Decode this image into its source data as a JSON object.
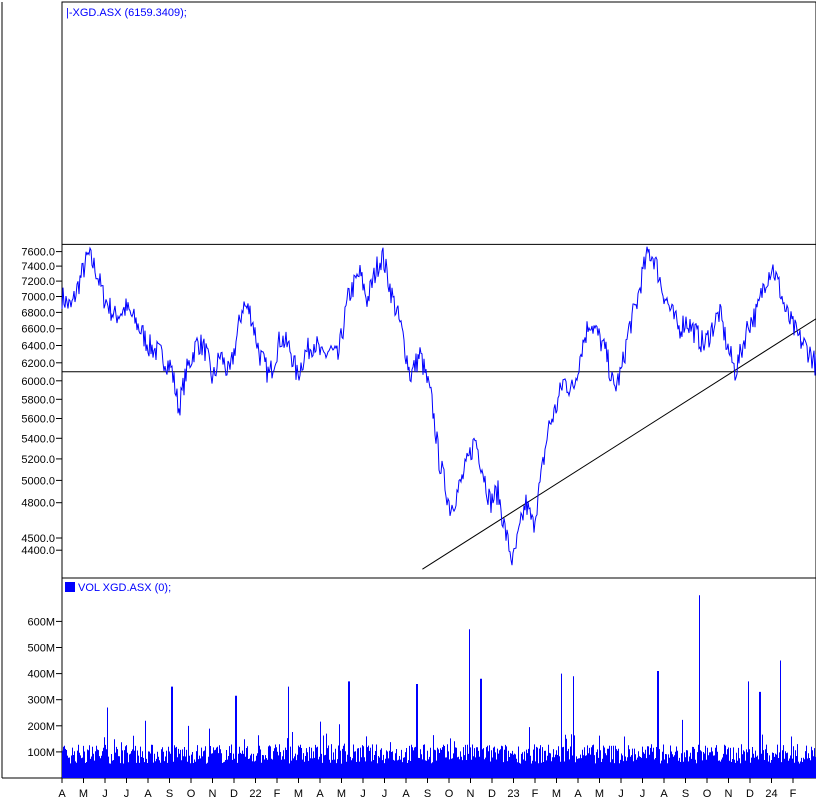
{
  "chart_data": [
    {
      "type": "line",
      "title": "",
      "legend": "|-XGD.ASX (6159.3409);",
      "y_ticks": [
        4400,
        4500,
        4800,
        5000,
        5200,
        5400,
        5600,
        5800,
        6000,
        6200,
        6400,
        6600,
        6800,
        7000,
        7200,
        7400,
        7600
      ],
      "y_tick_labels": [
        "4400.0",
        "4500.0",
        "4800.0",
        "5000.0",
        "5200.0",
        "5400.0",
        "5600.0",
        "5800.0",
        "6000.0",
        "6200.0",
        "6400.0",
        "6600.0",
        "6800.0",
        "7000.0",
        "7200.0",
        "7400.0",
        "7600.0"
      ],
      "hlines": [
        7700,
        6100
      ],
      "trendline": {
        "from": [
          0.478,
          4250
        ],
        "to": [
          1.0,
          6720
        ]
      },
      "keypoints": [
        [
          0.0,
          7000
        ],
        [
          0.012,
          6850
        ],
        [
          0.025,
          7250
        ],
        [
          0.035,
          7550
        ],
        [
          0.045,
          7350
        ],
        [
          0.055,
          7000
        ],
        [
          0.07,
          6750
        ],
        [
          0.085,
          6850
        ],
        [
          0.1,
          6650
        ],
        [
          0.115,
          6400
        ],
        [
          0.13,
          6300
        ],
        [
          0.145,
          6150
        ],
        [
          0.155,
          5700
        ],
        [
          0.165,
          6100
        ],
        [
          0.18,
          6450
        ],
        [
          0.19,
          6350
        ],
        [
          0.2,
          6000
        ],
        [
          0.21,
          6300
        ],
        [
          0.222,
          6050
        ],
        [
          0.232,
          6500
        ],
        [
          0.24,
          6900
        ],
        [
          0.25,
          6800
        ],
        [
          0.262,
          6300
        ],
        [
          0.275,
          6050
        ],
        [
          0.29,
          6500
        ],
        [
          0.303,
          6350
        ],
        [
          0.312,
          6050
        ],
        [
          0.322,
          6300
        ],
        [
          0.335,
          6450
        ],
        [
          0.345,
          6250
        ],
        [
          0.355,
          6350
        ],
        [
          0.366,
          6250
        ],
        [
          0.38,
          7000
        ],
        [
          0.395,
          7300
        ],
        [
          0.405,
          6950
        ],
        [
          0.418,
          7400
        ],
        [
          0.425,
          7550
        ],
        [
          0.438,
          7000
        ],
        [
          0.45,
          6600
        ],
        [
          0.462,
          6050
        ],
        [
          0.475,
          6300
        ],
        [
          0.49,
          5800
        ],
        [
          0.5,
          5200
        ],
        [
          0.515,
          4750
        ],
        [
          0.525,
          4900
        ],
        [
          0.535,
          5100
        ],
        [
          0.548,
          5400
        ],
        [
          0.558,
          5100
        ],
        [
          0.568,
          4800
        ],
        [
          0.578,
          4900
        ],
        [
          0.588,
          4550
        ],
        [
          0.598,
          4300
        ],
        [
          0.605,
          4500
        ],
        [
          0.615,
          4800
        ],
        [
          0.625,
          4600
        ],
        [
          0.635,
          5000
        ],
        [
          0.645,
          5500
        ],
        [
          0.655,
          5700
        ],
        [
          0.665,
          6000
        ],
        [
          0.678,
          5900
        ],
        [
          0.69,
          6400
        ],
        [
          0.7,
          6700
        ],
        [
          0.712,
          6500
        ],
        [
          0.722,
          6300
        ],
        [
          0.732,
          5900
        ],
        [
          0.742,
          6100
        ],
        [
          0.752,
          6600
        ],
        [
          0.762,
          6900
        ],
        [
          0.77,
          7300
        ],
        [
          0.778,
          7600
        ],
        [
          0.786,
          7500
        ],
        [
          0.796,
          7100
        ],
        [
          0.808,
          6800
        ],
        [
          0.818,
          6600
        ],
        [
          0.828,
          6700
        ],
        [
          0.84,
          6550
        ],
        [
          0.852,
          6400
        ],
        [
          0.862,
          6600
        ],
        [
          0.872,
          6800
        ],
        [
          0.882,
          6400
        ],
        [
          0.893,
          6100
        ],
        [
          0.9,
          6300
        ],
        [
          0.91,
          6650
        ],
        [
          0.922,
          6800
        ],
        [
          0.932,
          7200
        ],
        [
          0.942,
          7400
        ],
        [
          0.952,
          7100
        ],
        [
          0.96,
          6800
        ],
        [
          0.968,
          6650
        ],
        [
          0.976,
          6500
        ],
        [
          0.985,
          6400
        ],
        [
          0.993,
          6300
        ],
        [
          1.0,
          6170
        ]
      ]
    },
    {
      "type": "bar",
      "legend": "VOL XGD.ASX (0);",
      "y_ticks": [
        100,
        200,
        300,
        400,
        500,
        600
      ],
      "y_tick_labels": [
        "100M",
        "200M",
        "300M",
        "400M",
        "500M",
        "600M"
      ],
      "spikes": [
        [
          0.06,
          270
        ],
        [
          0.145,
          350
        ],
        [
          0.23,
          315
        ],
        [
          0.3,
          350
        ],
        [
          0.38,
          370
        ],
        [
          0.47,
          360
        ],
        [
          0.54,
          570
        ],
        [
          0.555,
          380
        ],
        [
          0.662,
          400
        ],
        [
          0.678,
          390
        ],
        [
          0.79,
          410
        ],
        [
          0.845,
          700
        ],
        [
          0.91,
          370
        ],
        [
          0.925,
          330
        ],
        [
          0.952,
          450
        ]
      ]
    }
  ],
  "x_axis": {
    "labels": [
      "A",
      "M",
      "J",
      "J",
      "A",
      "S",
      "O",
      "N",
      "D",
      "22",
      "F",
      "M",
      "A",
      "M",
      "J",
      "J",
      "A",
      "S",
      "O",
      "N",
      "D",
      "23",
      "F",
      "M",
      "A",
      "M",
      "J",
      "J",
      "A",
      "S",
      "O",
      "N",
      "D",
      "24",
      "F"
    ]
  }
}
